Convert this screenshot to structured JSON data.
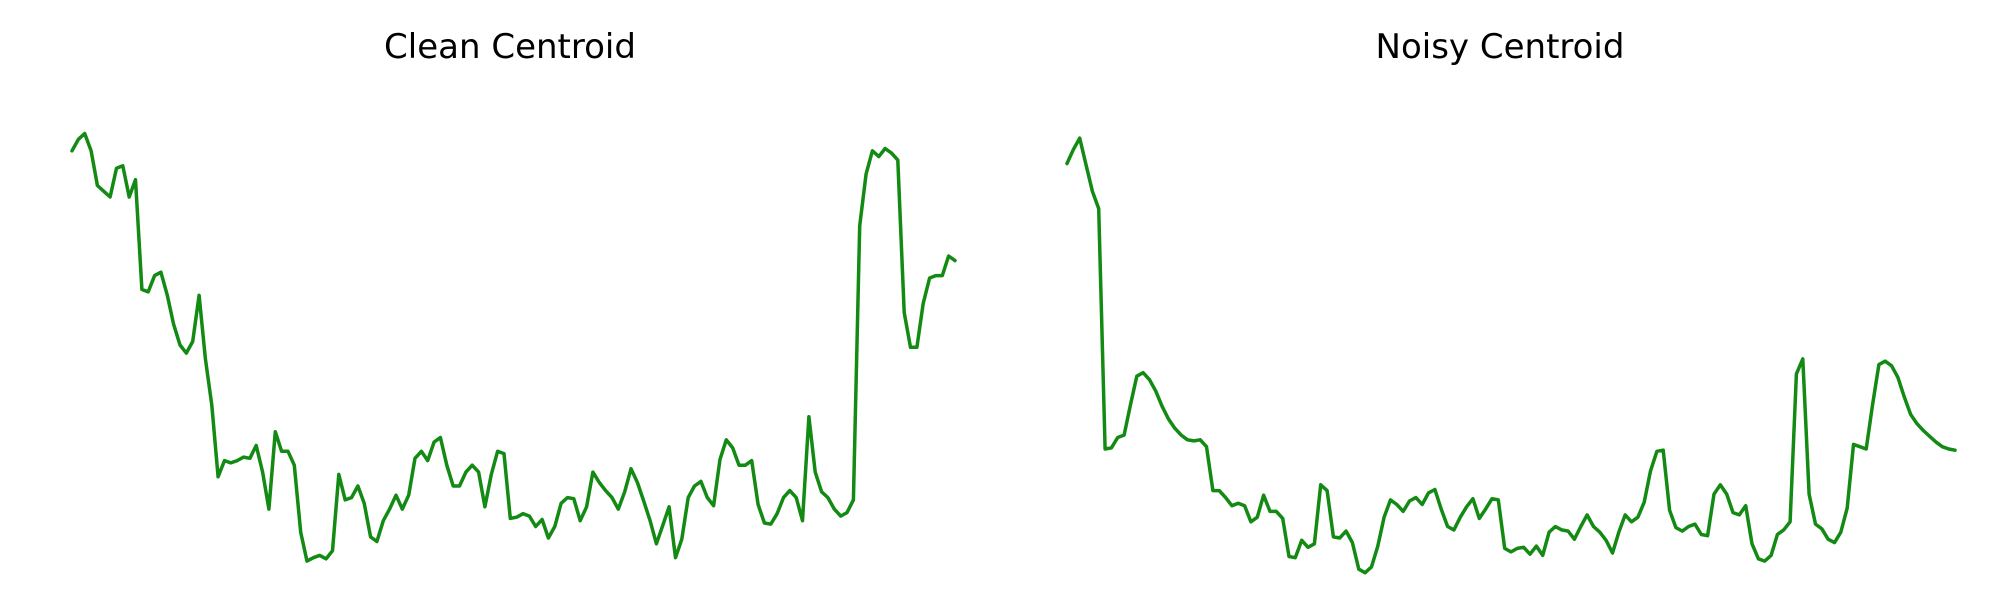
{
  "chart_data": [
    {
      "type": "line",
      "title": "Clean Centroid",
      "xlabel": "",
      "ylabel": "",
      "axes_visible": false,
      "grid": false,
      "color": "#138a13",
      "ylim": [
        -1.97,
        2.33
      ],
      "y": [
        1.7,
        1.8,
        1.85,
        1.7,
        1.4,
        1.35,
        1.3,
        1.55,
        1.57,
        1.3,
        1.45,
        0.5,
        0.48,
        0.62,
        0.65,
        0.45,
        0.2,
        0.02,
        -0.05,
        0.05,
        0.45,
        -0.1,
        -0.5,
        -1.12,
        -0.98,
        -1.0,
        -0.98,
        -0.95,
        -0.96,
        -0.85,
        -1.08,
        -1.4,
        -0.73,
        -0.9,
        -0.9,
        -1.02,
        -1.6,
        -1.85,
        -1.82,
        -1.8,
        -1.83,
        -1.76,
        -1.1,
        -1.32,
        -1.3,
        -1.2,
        -1.35,
        -1.64,
        -1.68,
        -1.5,
        -1.4,
        -1.28,
        -1.4,
        -1.28,
        -0.96,
        -0.9,
        -0.98,
        -0.82,
        -0.78,
        -1.02,
        -1.2,
        -1.2,
        -1.08,
        -1.02,
        -1.08,
        -1.38,
        -1.1,
        -0.9,
        -0.92,
        -1.48,
        -1.47,
        -1.44,
        -1.46,
        -1.55,
        -1.49,
        -1.65,
        -1.55,
        -1.35,
        -1.3,
        -1.31,
        -1.5,
        -1.38,
        -1.08,
        -1.17,
        -1.24,
        -1.3,
        -1.4,
        -1.25,
        -1.05,
        -1.17,
        -1.33,
        -1.5,
        -1.7,
        -1.54,
        -1.38,
        -1.82,
        -1.66,
        -1.3,
        -1.2,
        -1.16,
        -1.3,
        -1.37,
        -0.97,
        -0.8,
        -0.87,
        -1.02,
        -1.02,
        -0.98,
        -1.36,
        -1.52,
        -1.53,
        -1.44,
        -1.3,
        -1.24,
        -1.3,
        -1.5,
        -0.6,
        -1.08,
        -1.25,
        -1.3,
        -1.4,
        -1.46,
        -1.43,
        -1.32,
        1.05,
        1.5,
        1.7,
        1.65,
        1.72,
        1.68,
        1.62,
        0.3,
        0.0,
        0.0,
        0.38,
        0.6,
        0.62,
        0.62,
        0.79,
        0.75
      ]
    },
    {
      "type": "line",
      "title": "Noisy Centroid",
      "xlabel": "",
      "ylabel": "",
      "axes_visible": false,
      "grid": false,
      "color": "#138a13",
      "ylim": [
        -1.97,
        2.33
      ],
      "y": [
        1.59,
        1.71,
        1.81,
        1.58,
        1.35,
        1.2,
        -0.88,
        -0.87,
        -0.78,
        -0.76,
        -0.5,
        -0.25,
        -0.22,
        -0.28,
        -0.38,
        -0.51,
        -0.62,
        -0.7,
        -0.76,
        -0.8,
        -0.81,
        -0.8,
        -0.86,
        -1.24,
        -1.24,
        -1.3,
        -1.37,
        -1.35,
        -1.37,
        -1.51,
        -1.47,
        -1.28,
        -1.42,
        -1.42,
        -1.48,
        -1.81,
        -1.82,
        -1.67,
        -1.73,
        -1.7,
        -1.19,
        -1.24,
        -1.64,
        -1.65,
        -1.59,
        -1.69,
        -1.92,
        -1.95,
        -1.9,
        -1.72,
        -1.47,
        -1.32,
        -1.36,
        -1.42,
        -1.33,
        -1.3,
        -1.36,
        -1.26,
        -1.23,
        -1.4,
        -1.55,
        -1.58,
        -1.47,
        -1.38,
        -1.31,
        -1.48,
        -1.4,
        -1.31,
        -1.32,
        -1.74,
        -1.77,
        -1.74,
        -1.73,
        -1.79,
        -1.72,
        -1.8,
        -1.6,
        -1.55,
        -1.58,
        -1.59,
        -1.66,
        -1.55,
        -1.45,
        -1.55,
        -1.6,
        -1.67,
        -1.78,
        -1.6,
        -1.45,
        -1.51,
        -1.47,
        -1.34,
        -1.07,
        -0.9,
        -0.89,
        -1.41,
        -1.56,
        -1.59,
        -1.55,
        -1.53,
        -1.62,
        -1.63,
        -1.27,
        -1.19,
        -1.27,
        -1.43,
        -1.45,
        -1.37,
        -1.7,
        -1.83,
        -1.85,
        -1.8,
        -1.62,
        -1.58,
        -1.51,
        -0.23,
        -0.1,
        -1.27,
        -1.53,
        -1.57,
        -1.66,
        -1.69,
        -1.6,
        -1.39,
        -0.84,
        -0.86,
        -0.88,
        -0.5,
        -0.15,
        -0.12,
        -0.16,
        -0.26,
        -0.43,
        -0.58,
        -0.66,
        -0.72,
        -0.77,
        -0.82,
        -0.86,
        -0.88,
        -0.89
      ]
    }
  ]
}
